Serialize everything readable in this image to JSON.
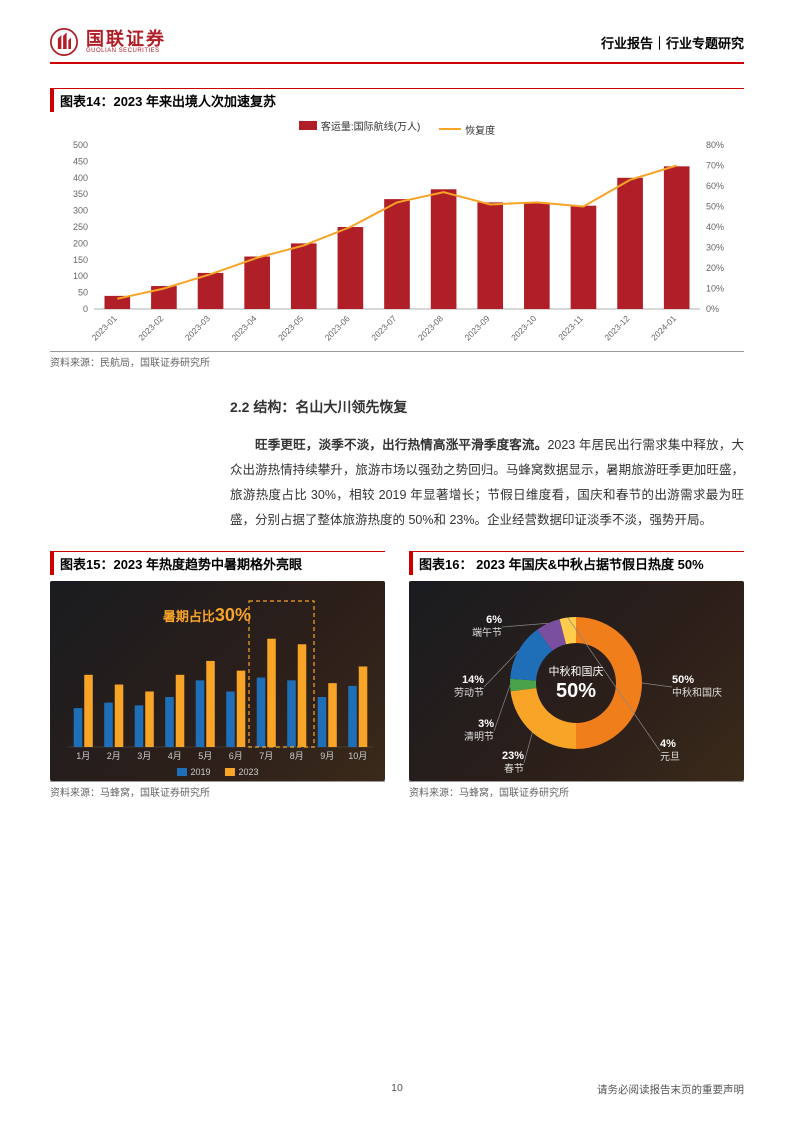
{
  "header": {
    "logo_cn": "国联证券",
    "logo_en": "GUOLIAN SECURITIES",
    "right": "行业报告｜行业专题研究"
  },
  "chart14": {
    "title": "图表14：2023 年来出境人次加速复苏",
    "legend_bar": "客运量:国际航线(万人)",
    "legend_line": "恢复度",
    "categories": [
      "2023-01",
      "2023-02",
      "2023-03",
      "2023-04",
      "2023-05",
      "2023-06",
      "2023-07",
      "2023-08",
      "2023-09",
      "2023-10",
      "2023-11",
      "2023-12",
      "2024-01"
    ],
    "bar_values": [
      40,
      70,
      110,
      160,
      200,
      250,
      335,
      365,
      325,
      325,
      315,
      400,
      435
    ],
    "line_values": [
      5,
      10,
      17,
      25,
      31,
      40,
      52,
      57,
      51,
      52,
      50,
      63,
      70
    ],
    "y_left_ticks": [
      0,
      50,
      100,
      150,
      200,
      250,
      300,
      350,
      400,
      450,
      500
    ],
    "y_right_ticks": [
      0,
      10,
      20,
      30,
      40,
      50,
      60,
      70,
      80
    ],
    "y_left_max": 500,
    "y_right_max": 80,
    "bar_color": "#b01e27",
    "line_color": "#f7a427",
    "source": "资料来源：民航局，国联证券研究所"
  },
  "section": {
    "heading": "2.2 结构：名山大川领先恢复",
    "para_lead": "旺季更旺，淡季不淡，出行热情高涨平滑季度客流。",
    "para_body": "2023 年居民出行需求集中释放，大众出游热情持续攀升，旅游市场以强劲之势回归。马蜂窝数据显示，暑期旅游旺季更加旺盛，旅游热度占比 30%，相较 2019 年显著增长；节假日维度看，国庆和春节的出游需求最为旺盛，分别占据了整体旅游热度的 50%和 23%。企业经营数据印证淡季不淡，强势开局。"
  },
  "chart15": {
    "title": "图表15：2023 年热度趋势中暑期格外亮眼",
    "annot_prefix": "暑期占比",
    "annot_value": "30%",
    "months": [
      "1月",
      "2月",
      "3月",
      "4月",
      "5月",
      "6月",
      "7月",
      "8月",
      "9月",
      "10月"
    ],
    "v2019": [
      28,
      32,
      30,
      36,
      48,
      40,
      50,
      48,
      36,
      44
    ],
    "v2023": [
      52,
      45,
      40,
      52,
      62,
      55,
      78,
      74,
      46,
      58
    ],
    "legend_a": "2019",
    "legend_b": "2023",
    "color_2019": "#1e6fb8",
    "color_2023": "#f7a427",
    "source": "资料来源：马蜂窝，国联证券研究所"
  },
  "chart16": {
    "title": "图表16： 2023 年国庆&中秋占据节假日热度 50%",
    "slices": [
      {
        "label": "中秋和国庆",
        "pct": 50,
        "color": "#f07e1a"
      },
      {
        "label": "春节",
        "pct": 23,
        "color": "#f7a427"
      },
      {
        "label": "清明节",
        "pct": 3,
        "color": "#4aa24a"
      },
      {
        "label": "劳动节",
        "pct": 14,
        "color": "#1e6fb8"
      },
      {
        "label": "端午节",
        "pct": 6,
        "color": "#7b4fa0"
      },
      {
        "label": "元旦",
        "pct": 4,
        "color": "#ffcc4d"
      }
    ],
    "center_label": "中秋和国庆",
    "center_pct": "50%",
    "source": "资料来源：马蜂窝，国联证券研究所"
  },
  "footer": {
    "page": "10",
    "disclaimer": "请务必阅读报告末页的重要声明"
  }
}
